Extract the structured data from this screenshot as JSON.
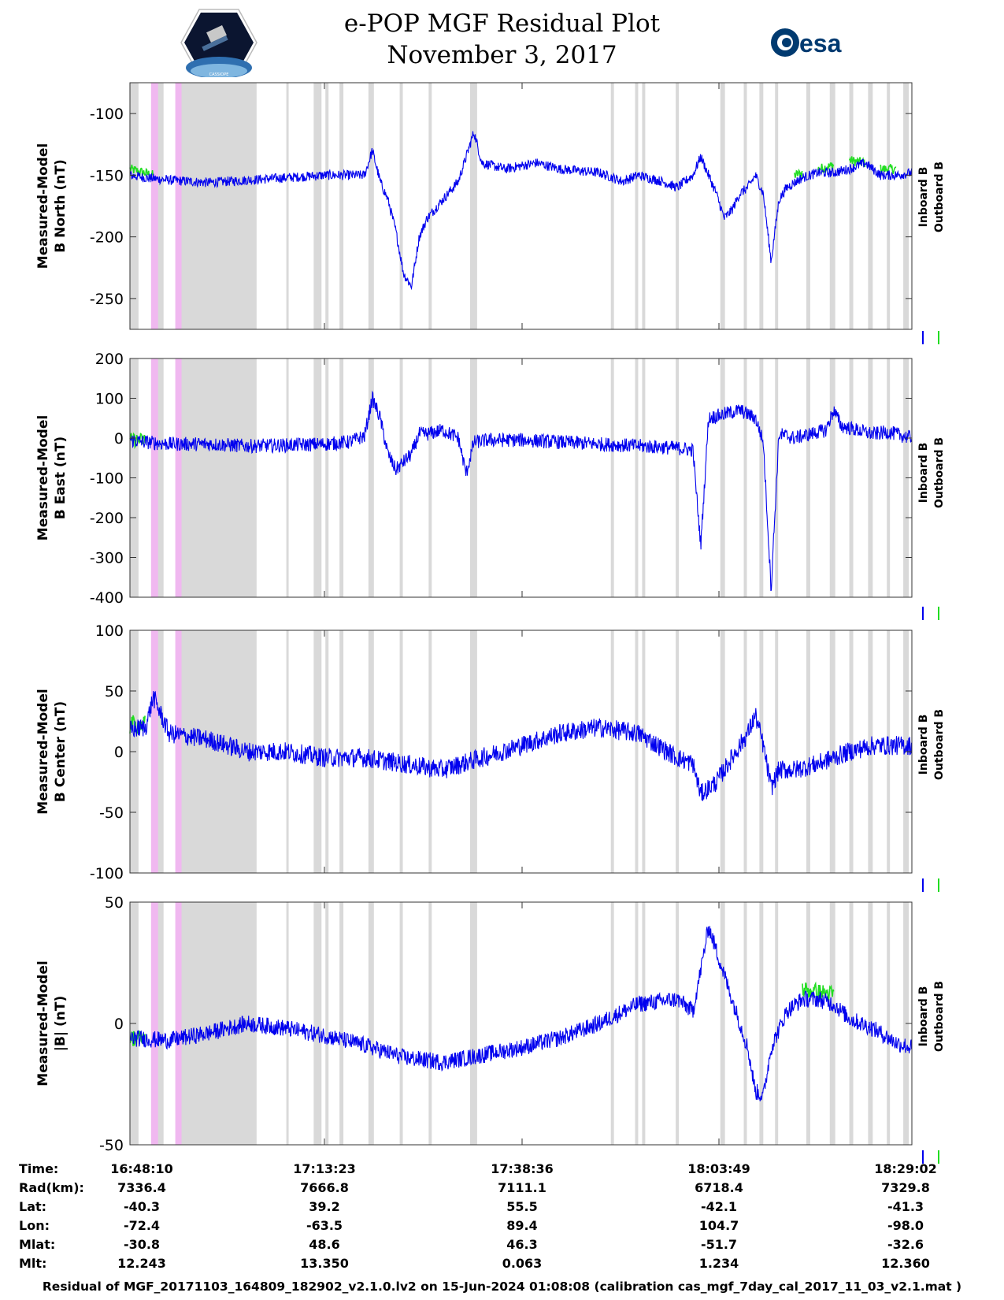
{
  "header": {
    "title_line1": "e-POP MGF Residual Plot",
    "title_line2": "November 3, 2017",
    "esa_logo_text": "esa",
    "cassiope_logo_text": "CASSIOPE"
  },
  "chart_data": {
    "type": "line",
    "x_tick_labels": [
      "16:48:10",
      "17:13:23",
      "17:38:36",
      "18:03:49",
      "18:29:02"
    ],
    "legend": [
      "Inboard B",
      "Outboard B"
    ],
    "colors": {
      "inboard": "#0000ee",
      "outboard": "#22dd22",
      "gap": "#d9d9d9",
      "gap_magenta": "#f0b8f0"
    },
    "panels": [
      {
        "ylabel_line1": "Measured-Model",
        "ylabel_line2": "B North (nT)",
        "ylim": [
          -275,
          -75
        ],
        "yticks": [
          -100,
          -150,
          -200,
          -250
        ],
        "ytick_labels": [
          "-100",
          "-150",
          "-200",
          "-250"
        ],
        "inboard": [
          [
            0,
            -150
          ],
          [
            2,
            -152
          ],
          [
            5,
            -154
          ],
          [
            10,
            -156
          ],
          [
            15,
            -154
          ],
          [
            20,
            -152
          ],
          [
            25,
            -150
          ],
          [
            28,
            -150
          ],
          [
            30,
            -150
          ],
          [
            31,
            -130
          ],
          [
            32,
            -155
          ],
          [
            33,
            -170
          ],
          [
            34,
            -195
          ],
          [
            35,
            -230
          ],
          [
            36,
            -240
          ],
          [
            37,
            -200
          ],
          [
            38,
            -185
          ],
          [
            40,
            -170
          ],
          [
            42,
            -155
          ],
          [
            43,
            -135
          ],
          [
            44,
            -115
          ],
          [
            45,
            -140
          ],
          [
            48,
            -145
          ],
          [
            52,
            -140
          ],
          [
            55,
            -145
          ],
          [
            60,
            -148
          ],
          [
            63,
            -155
          ],
          [
            65,
            -150
          ],
          [
            68,
            -155
          ],
          [
            70,
            -160
          ],
          [
            72,
            -150
          ],
          [
            73,
            -135
          ],
          [
            75,
            -165
          ],
          [
            76,
            -185
          ],
          [
            77,
            -178
          ],
          [
            78,
            -165
          ],
          [
            79,
            -160
          ],
          [
            80,
            -150
          ],
          [
            81,
            -165
          ],
          [
            82,
            -220
          ],
          [
            83,
            -170
          ],
          [
            84,
            -160
          ],
          [
            86,
            -152
          ],
          [
            88,
            -148
          ],
          [
            90,
            -148
          ],
          [
            92,
            -145
          ],
          [
            94,
            -140
          ],
          [
            96,
            -150
          ],
          [
            98,
            -150
          ],
          [
            100,
            -148
          ]
        ],
        "outboard": [
          [
            0,
            -145
          ],
          [
            3,
            -150
          ],
          [
            85,
            -150
          ],
          [
            86,
            -148
          ],
          [
            88,
            -145
          ],
          [
            90,
            -142
          ],
          [
            92,
            -138
          ],
          [
            94,
            -140
          ],
          [
            96,
            -145
          ],
          [
            98,
            -145
          ],
          [
            100,
            -142
          ]
        ]
      },
      {
        "ylabel_line1": "Measured-Model",
        "ylabel_line2": "B East (nT)",
        "ylim": [
          -400,
          200
        ],
        "yticks": [
          200,
          100,
          0,
          -100,
          -200,
          -300,
          -400
        ],
        "ytick_labels": [
          "200",
          "100",
          "0",
          "-100",
          "-200",
          "-300",
          "-400"
        ],
        "inboard": [
          [
            0,
            -5
          ],
          [
            2,
            -10
          ],
          [
            5,
            -15
          ],
          [
            10,
            -15
          ],
          [
            15,
            -20
          ],
          [
            20,
            -18
          ],
          [
            25,
            -15
          ],
          [
            28,
            -10
          ],
          [
            30,
            5
          ],
          [
            31,
            100
          ],
          [
            32,
            50
          ],
          [
            33,
            -40
          ],
          [
            34,
            -80
          ],
          [
            35,
            -60
          ],
          [
            36,
            -40
          ],
          [
            37,
            10
          ],
          [
            38,
            10
          ],
          [
            40,
            20
          ],
          [
            42,
            0
          ],
          [
            43,
            -90
          ],
          [
            44,
            -10
          ],
          [
            46,
            -5
          ],
          [
            50,
            -5
          ],
          [
            55,
            -10
          ],
          [
            60,
            -15
          ],
          [
            65,
            -20
          ],
          [
            70,
            -25
          ],
          [
            72,
            -30
          ],
          [
            73,
            -270
          ],
          [
            74,
            50
          ],
          [
            76,
            60
          ],
          [
            78,
            70
          ],
          [
            80,
            50
          ],
          [
            81,
            -10
          ],
          [
            82,
            -380
          ],
          [
            83,
            10
          ],
          [
            85,
            0
          ],
          [
            87,
            10
          ],
          [
            89,
            20
          ],
          [
            90,
            70
          ],
          [
            91,
            30
          ],
          [
            93,
            20
          ],
          [
            95,
            10
          ],
          [
            97,
            15
          ],
          [
            100,
            0
          ]
        ],
        "outboard": [
          [
            0,
            -5
          ],
          [
            2,
            -5
          ]
        ]
      },
      {
        "ylabel_line1": "Measured-Model",
        "ylabel_line2": "B Center (nT)",
        "ylim": [
          -100,
          100
        ],
        "yticks": [
          100,
          50,
          0,
          -50,
          -100
        ],
        "ytick_labels": [
          "100",
          "50",
          "0",
          "-50",
          "-100"
        ],
        "inboard": [
          [
            0,
            18
          ],
          [
            2,
            20
          ],
          [
            3,
            45
          ],
          [
            5,
            15
          ],
          [
            10,
            10
          ],
          [
            15,
            0
          ],
          [
            20,
            0
          ],
          [
            25,
            -5
          ],
          [
            30,
            -5
          ],
          [
            35,
            -10
          ],
          [
            40,
            -15
          ],
          [
            45,
            -5
          ],
          [
            50,
            5
          ],
          [
            55,
            15
          ],
          [
            60,
            20
          ],
          [
            65,
            15
          ],
          [
            70,
            -5
          ],
          [
            72,
            -10
          ],
          [
            73,
            -35
          ],
          [
            75,
            -25
          ],
          [
            77,
            -5
          ],
          [
            79,
            15
          ],
          [
            80,
            30
          ],
          [
            81,
            5
          ],
          [
            82,
            -30
          ],
          [
            83,
            -15
          ],
          [
            85,
            -15
          ],
          [
            88,
            -10
          ],
          [
            90,
            -5
          ],
          [
            92,
            0
          ],
          [
            95,
            5
          ],
          [
            100,
            5
          ]
        ],
        "outboard": [
          [
            0,
            22
          ],
          [
            2,
            22
          ]
        ]
      },
      {
        "ylabel_line1": "Measured-Model",
        "ylabel_line2": "|B| (nT)",
        "ylim": [
          -50,
          50
        ],
        "yticks": [
          50,
          0,
          -50
        ],
        "ytick_labels": [
          "50",
          "0",
          "-50"
        ],
        "inboard": [
          [
            0,
            -6
          ],
          [
            5,
            -7
          ],
          [
            10,
            -4
          ],
          [
            15,
            0
          ],
          [
            20,
            -2
          ],
          [
            25,
            -5
          ],
          [
            30,
            -9
          ],
          [
            35,
            -14
          ],
          [
            40,
            -16
          ],
          [
            45,
            -13
          ],
          [
            50,
            -10
          ],
          [
            55,
            -6
          ],
          [
            60,
            0
          ],
          [
            65,
            8
          ],
          [
            70,
            10
          ],
          [
            72,
            5
          ],
          [
            73,
            22
          ],
          [
            74,
            40
          ],
          [
            75,
            30
          ],
          [
            77,
            10
          ],
          [
            79,
            -10
          ],
          [
            80,
            -28
          ],
          [
            81,
            -30
          ],
          [
            82,
            -10
          ],
          [
            84,
            5
          ],
          [
            86,
            10
          ],
          [
            88,
            10
          ],
          [
            90,
            8
          ],
          [
            92,
            2
          ],
          [
            95,
            -2
          ],
          [
            98,
            -8
          ],
          [
            100,
            -10
          ]
        ],
        "outboard": [
          [
            0,
            -6
          ],
          [
            2,
            -6
          ],
          [
            86,
            14
          ],
          [
            90,
            12
          ]
        ]
      }
    ],
    "gap_intervals": [
      [
        0,
        1.1
      ],
      [
        3.5,
        4.3
      ],
      [
        6.2,
        16.2
      ],
      [
        20,
        20.3
      ],
      [
        23.5,
        24.5
      ],
      [
        25,
        25.4
      ],
      [
        26.8,
        27.3
      ],
      [
        30.5,
        31.2
      ],
      [
        34.5,
        34.9
      ],
      [
        38.2,
        38.6
      ],
      [
        43.5,
        44.4
      ],
      [
        61.5,
        61.9
      ],
      [
        64.6,
        65.0
      ],
      [
        65.5,
        65.9
      ],
      [
        69.8,
        70.2
      ],
      [
        75.5,
        76.1
      ],
      [
        78.5,
        78.9
      ],
      [
        80.5,
        81.0
      ],
      [
        82.5,
        82.9
      ],
      [
        86.5,
        87.0
      ],
      [
        89.5,
        90.2
      ],
      [
        92.0,
        92.5
      ],
      [
        94.4,
        95.0
      ],
      [
        96.8,
        97.2
      ],
      [
        98.9,
        99.6
      ]
    ],
    "gap_intervals_magenta": [
      [
        2.7,
        3.6
      ],
      [
        5.8,
        6.6
      ]
    ],
    "x_info_rows": [
      {
        "label": "Time:",
        "values": [
          "16:48:10",
          "17:13:23",
          "17:38:36",
          "18:03:49",
          "18:29:02"
        ]
      },
      {
        "label": "Rad(km):",
        "values": [
          "7336.4",
          "7666.8",
          "7111.1",
          "6718.4",
          "7329.8"
        ]
      },
      {
        "label": "Lat:",
        "values": [
          "-40.3",
          "39.2",
          "55.5",
          "-42.1",
          "-41.3"
        ]
      },
      {
        "label": "Lon:",
        "values": [
          "-72.4",
          "-63.5",
          "89.4",
          "104.7",
          "-98.0"
        ]
      },
      {
        "label": "Mlat:",
        "values": [
          "-30.8",
          "48.6",
          "46.3",
          "-51.7",
          "-32.6"
        ]
      },
      {
        "label": "Mlt:",
        "values": [
          "12.243",
          "13.350",
          "0.063",
          "1.234",
          "12.360"
        ]
      }
    ]
  },
  "footer": {
    "text": "Residual of MGF_20171103_164809_182902_v2.1.0.lv2 on 15-Jun-2024 01:08:08 (calibration cas_mgf_7day_cal_2017_11_03_v2.1.mat )"
  }
}
